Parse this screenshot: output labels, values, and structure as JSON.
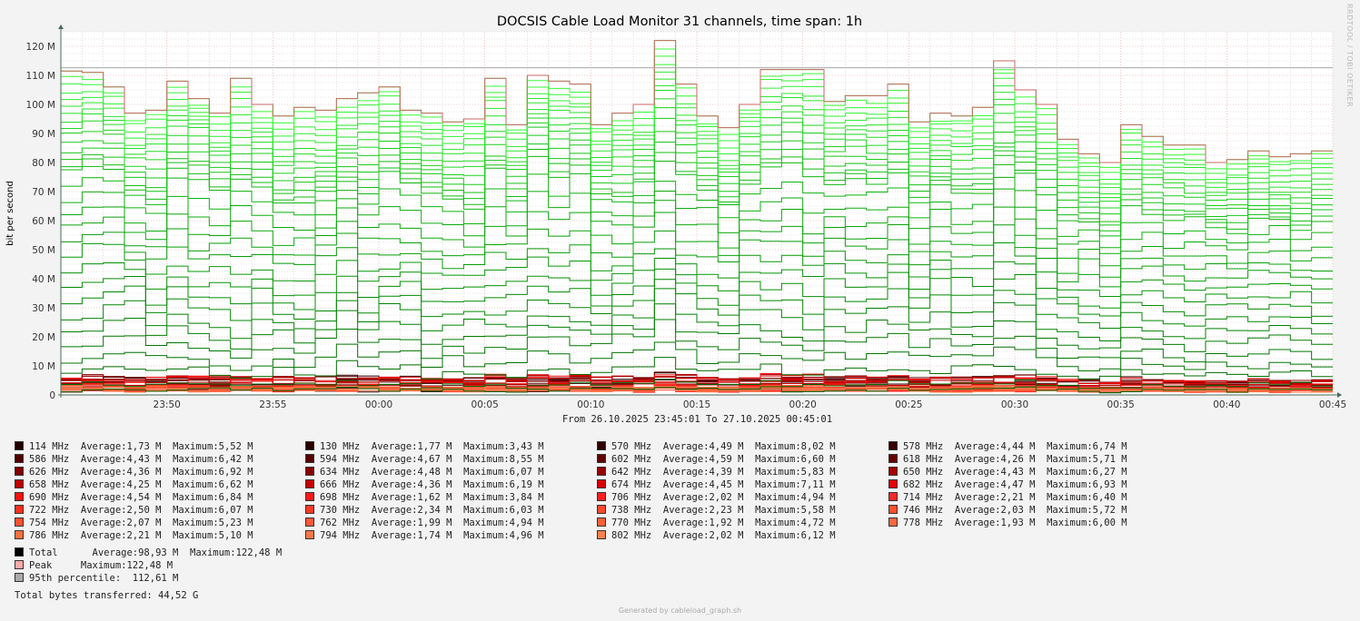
{
  "chart_data": {
    "type": "line",
    "title": "DOCSIS Cable Load Monitor 31 channels, time span: 1h",
    "ylabel": "bit per second",
    "xlabel": "From 26.10.2025 23:45:01 To 27.10.2025 00:45:01",
    "ylim": [
      0,
      125
    ],
    "y_unit": "M",
    "yticks": [
      "0",
      "10 M",
      "20 M",
      "30 M",
      "40 M",
      "50 M",
      "60 M",
      "70 M",
      "80 M",
      "90 M",
      "100 M",
      "110 M",
      "120 M"
    ],
    "xticks": [
      "23:50",
      "23:55",
      "00:00",
      "00:05",
      "00:10",
      "00:15",
      "00:20",
      "00:25",
      "00:30",
      "00:35",
      "00:40",
      "00:45"
    ],
    "x_minutes_span": 60,
    "grid": true,
    "total_series_M": [
      111.5,
      111,
      106,
      97,
      98,
      108,
      102,
      97,
      109,
      100,
      96,
      99,
      98,
      102,
      104,
      106,
      98,
      97,
      94,
      95,
      109,
      93,
      110,
      108,
      107,
      93,
      97,
      100,
      122,
      107,
      96,
      92,
      100,
      112,
      112,
      112,
      101,
      103,
      103,
      107,
      94,
      97,
      96,
      99,
      115,
      105,
      100,
      88,
      83,
      80,
      93,
      89,
      86,
      86,
      80,
      81,
      84,
      82,
      83,
      84
    ],
    "percentile_95_M": 112.61,
    "channels": [
      {
        "freq": "114 MHz",
        "avg": "1,73 M",
        "max": "5,52 M",
        "color": "#200000"
      },
      {
        "freq": "130 MHz",
        "avg": "1,77 M",
        "max": "3,43 M",
        "color": "#280000"
      },
      {
        "freq": "570 MHz",
        "avg": "4,49 M",
        "max": "8,02 M",
        "color": "#300000"
      },
      {
        "freq": "578 MHz",
        "avg": "4,44 M",
        "max": "6,74 M",
        "color": "#380000"
      },
      {
        "freq": "586 MHz",
        "avg": "4,43 M",
        "max": "6,42 M",
        "color": "#500000"
      },
      {
        "freq": "594 MHz",
        "avg": "4,67 M",
        "max": "8,55 M",
        "color": "#580000"
      },
      {
        "freq": "602 MHz",
        "avg": "4,59 M",
        "max": "6,60 M",
        "color": "#600000"
      },
      {
        "freq": "618 MHz",
        "avg": "4,26 M",
        "max": "5,71 M",
        "color": "#680000"
      },
      {
        "freq": "626 MHz",
        "avg": "4,36 M",
        "max": "6,92 M",
        "color": "#800000"
      },
      {
        "freq": "634 MHz",
        "avg": "4,48 M",
        "max": "6,07 M",
        "color": "#880000"
      },
      {
        "freq": "642 MHz",
        "avg": "4,39 M",
        "max": "5,83 M",
        "color": "#980000"
      },
      {
        "freq": "650 MHz",
        "avg": "4,43 M",
        "max": "6,27 M",
        "color": "#a80000"
      },
      {
        "freq": "658 MHz",
        "avg": "4,25 M",
        "max": "6,62 M",
        "color": "#c00000"
      },
      {
        "freq": "666 MHz",
        "avg": "4,36 M",
        "max": "6,19 M",
        "color": "#c80000"
      },
      {
        "freq": "674 MHz",
        "avg": "4,45 M",
        "max": "7,11 M",
        "color": "#d80000"
      },
      {
        "freq": "682 MHz",
        "avg": "4,47 M",
        "max": "6,93 M",
        "color": "#e80000"
      },
      {
        "freq": "690 MHz",
        "avg": "4,54 M",
        "max": "6,84 M",
        "color": "#ff1010"
      },
      {
        "freq": "698 MHz",
        "avg": "1,62 M",
        "max": "3,84 M",
        "color": "#ff1818"
      },
      {
        "freq": "706 MHz",
        "avg": "2,02 M",
        "max": "4,94 M",
        "color": "#ff2020"
      },
      {
        "freq": "714 MHz",
        "avg": "2,21 M",
        "max": "6,40 M",
        "color": "#ff2828"
      },
      {
        "freq": "722 MHz",
        "avg": "2,50 M",
        "max": "6,07 M",
        "color": "#ff3020"
      },
      {
        "freq": "730 MHz",
        "avg": "2,34 M",
        "max": "6,03 M",
        "color": "#ff3828"
      },
      {
        "freq": "738 MHz",
        "avg": "2,23 M",
        "max": "5,58 M",
        "color": "#ff4830"
      },
      {
        "freq": "746 MHz",
        "avg": "2,03 M",
        "max": "5,72 M",
        "color": "#ff5030"
      },
      {
        "freq": "754 MHz",
        "avg": "2,07 M",
        "max": "5,23 M",
        "color": "#ff5030"
      },
      {
        "freq": "762 MHz",
        "avg": "1,99 M",
        "max": "4,94 M",
        "color": "#ff5838"
      },
      {
        "freq": "770 MHz",
        "avg": "1,92 M",
        "max": "4,72 M",
        "color": "#ff6038"
      },
      {
        "freq": "778 MHz",
        "avg": "1,93 M",
        "max": "6,00 M",
        "color": "#ff6840"
      },
      {
        "freq": "786 MHz",
        "avg": "2,21 M",
        "max": "5,10 M",
        "color": "#ff7040"
      },
      {
        "freq": "794 MHz",
        "avg": "1,74 M",
        "max": "4,96 M",
        "color": "#ff7848"
      },
      {
        "freq": "802 MHz",
        "avg": "2,02 M",
        "max": "6,12 M",
        "color": "#ff8050"
      }
    ],
    "summary": [
      {
        "label": "Total      Average:98,93 M  Maximum:122,48 M",
        "color": "#000000"
      },
      {
        "label": "Peak     Maximum:122,48 M",
        "color": "#ffaaaa"
      },
      {
        "label": "95th percentile:  112,61 M",
        "color": "#aaaaaa"
      }
    ],
    "total_bytes": "Total bytes transferred: 44,52 G"
  },
  "watermark": "RRDTOOL / TOBI OETIKER",
  "footer": "Generated by cableload_graph.sh"
}
